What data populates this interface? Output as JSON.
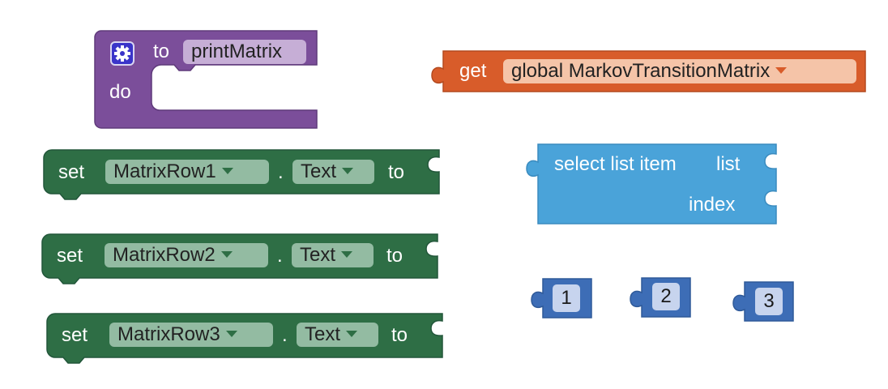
{
  "colors": {
    "procedure": "#7b4e9a",
    "procedure_field": "#c6aed6",
    "getter": "#d85c2a",
    "getter_field": "#f5c4a8",
    "setter": "#2e6e45",
    "setter_field": "#93bba2",
    "list": "#4aa3d9",
    "number": "#3d6db6",
    "number_field": "#c7d4ee"
  },
  "procedure": {
    "icon": "gear-icon",
    "to_label": "to",
    "name": "printMatrix",
    "do_label": "do"
  },
  "getter": {
    "get_label": "get",
    "variable": "global MarkovTransitionMatrix"
  },
  "setters": [
    {
      "set_label": "set",
      "component": "MatrixRow1",
      "dot": ".",
      "property": "Text",
      "to_label": "to"
    },
    {
      "set_label": "set",
      "component": "MatrixRow2",
      "dot": ".",
      "property": "Text",
      "to_label": "to"
    },
    {
      "set_label": "set",
      "component": "MatrixRow3",
      "dot": ".",
      "property": "Text",
      "to_label": "to"
    }
  ],
  "select_list_item": {
    "title": "select list item",
    "list_label": "list",
    "index_label": "index"
  },
  "numbers": [
    "1",
    "2",
    "3"
  ]
}
